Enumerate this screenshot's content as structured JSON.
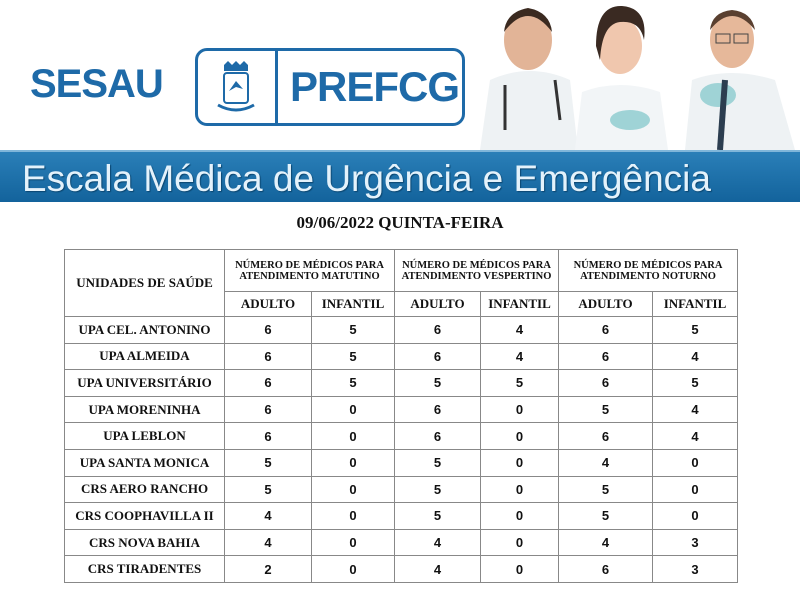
{
  "header": {
    "sesau_logo": "SESAU",
    "pref_logo": "PREFCG",
    "banner_title": "Escala Médica de Urgência e Emergência",
    "brand_color": "#1e6aa8"
  },
  "date_line": "09/06/2022 QUINTA-FEIRA",
  "table": {
    "unit_header": "UNIDADES DE SAÚDE",
    "groups": [
      "NÚMERO DE MÉDICOS PARA ATENDIMENTO MATUTINO",
      "NÚMERO DE MÉDICOS PARA ATENDIMENTO VESPERTINO",
      "NÚMERO DE MÉDICOS PARA ATENDIMENTO NOTURNO"
    ],
    "subheaders": [
      "ADULTO",
      "INFANTIL",
      "ADULTO",
      "INFANTIL",
      "ADULTO",
      "INFANTIL"
    ],
    "rows": [
      {
        "name": "UPA CEL. ANTONINO",
        "values": [
          "6",
          "5",
          "6",
          "4",
          "6",
          "5"
        ]
      },
      {
        "name": "UPA ALMEIDA",
        "values": [
          "6",
          "5",
          "6",
          "4",
          "6",
          "4"
        ]
      },
      {
        "name": "UPA UNIVERSITÁRIO",
        "values": [
          "6",
          "5",
          "5",
          "5",
          "6",
          "5"
        ]
      },
      {
        "name": "UPA MORENINHA",
        "values": [
          "6",
          "0",
          "6",
          "0",
          "5",
          "4"
        ]
      },
      {
        "name": "UPA LEBLON",
        "values": [
          "6",
          "0",
          "6",
          "0",
          "6",
          "4"
        ]
      },
      {
        "name": "UPA SANTA MONICA",
        "values": [
          "5",
          "0",
          "5",
          "0",
          "4",
          "0"
        ]
      },
      {
        "name": "CRS AERO RANCHO",
        "values": [
          "5",
          "0",
          "5",
          "0",
          "5",
          "0"
        ]
      },
      {
        "name": "CRS COOPHAVILLA II",
        "values": [
          "4",
          "0",
          "5",
          "0",
          "5",
          "0"
        ]
      },
      {
        "name": "CRS NOVA BAHIA",
        "values": [
          "4",
          "0",
          "4",
          "0",
          "4",
          "3"
        ]
      },
      {
        "name": "CRS TIRADENTES",
        "values": [
          "2",
          "0",
          "4",
          "0",
          "6",
          "3"
        ]
      }
    ]
  }
}
